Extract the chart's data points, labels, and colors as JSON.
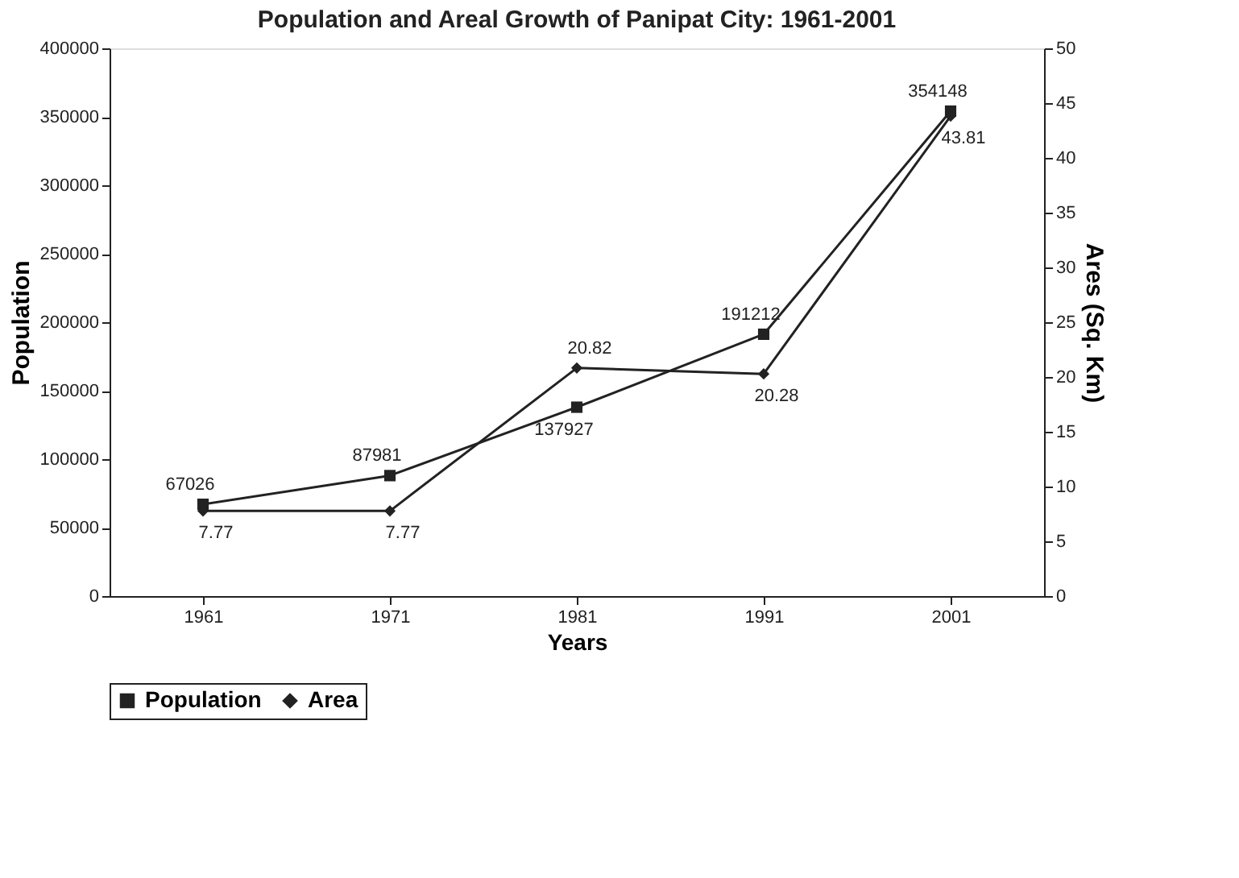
{
  "chart_data": {
    "type": "line",
    "title": "Population and Areal Growth of Panipat City: 1961-2001",
    "xlabel": "Years",
    "ylabel": "Population",
    "y2label": "Ares (Sq. Km)",
    "categories": [
      "1961",
      "1971",
      "1981",
      "1991",
      "2001"
    ],
    "series": [
      {
        "name": "Population",
        "color": "#222222",
        "marker": "square",
        "values": [
          67026,
          87981,
          137927,
          191212,
          354148
        ]
      },
      {
        "name": "Area",
        "color": "#222222",
        "marker": "diamond",
        "axis": "y2",
        "values": [
          7.77,
          7.77,
          20.82,
          20.28,
          43.81
        ]
      }
    ],
    "ylim": [
      0,
      400000
    ],
    "yticks": [
      0,
      50000,
      100000,
      150000,
      200000,
      250000,
      300000,
      350000,
      400000
    ],
    "y2lim": [
      0,
      50
    ],
    "y2ticks": [
      0,
      5,
      10,
      15,
      20,
      25,
      30,
      35,
      40,
      45,
      50
    ],
    "data_labels": true,
    "legend": "bottom",
    "grid": false,
    "line_style": "solid"
  }
}
